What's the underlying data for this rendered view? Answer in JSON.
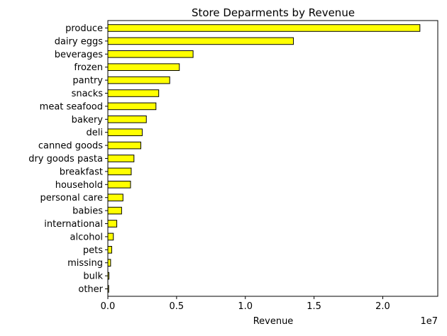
{
  "chart_data": {
    "type": "bar",
    "orientation": "horizontal",
    "title": "Store Deparments by Revenue",
    "xlabel": "Revenue",
    "ylabel": "",
    "x_scale_label": "1e7",
    "xlim": [
      0,
      2.4
    ],
    "x_ticks": [
      0.0,
      0.5,
      1.0,
      1.5,
      2.0
    ],
    "x_tick_labels": [
      "0.0",
      "0.5",
      "1.0",
      "1.5",
      "2.0"
    ],
    "categories": [
      "produce",
      "dairy eggs",
      "beverages",
      "frozen",
      "pantry",
      "snacks",
      "meat seafood",
      "bakery",
      "deli",
      "canned goods",
      "dry goods pasta",
      "breakfast",
      "household",
      "personal care",
      "babies",
      "international",
      "alcohol",
      "pets",
      "missing",
      "bulk",
      "other"
    ],
    "values": [
      2.27,
      1.35,
      0.62,
      0.52,
      0.45,
      0.37,
      0.35,
      0.28,
      0.25,
      0.24,
      0.19,
      0.17,
      0.165,
      0.11,
      0.1,
      0.065,
      0.04,
      0.028,
      0.02,
      0.008,
      0.006
    ],
    "value_units": "1e7",
    "grid": false,
    "legend": "none",
    "bar_color": "#ffff00",
    "bar_edge_color": "#000000"
  }
}
